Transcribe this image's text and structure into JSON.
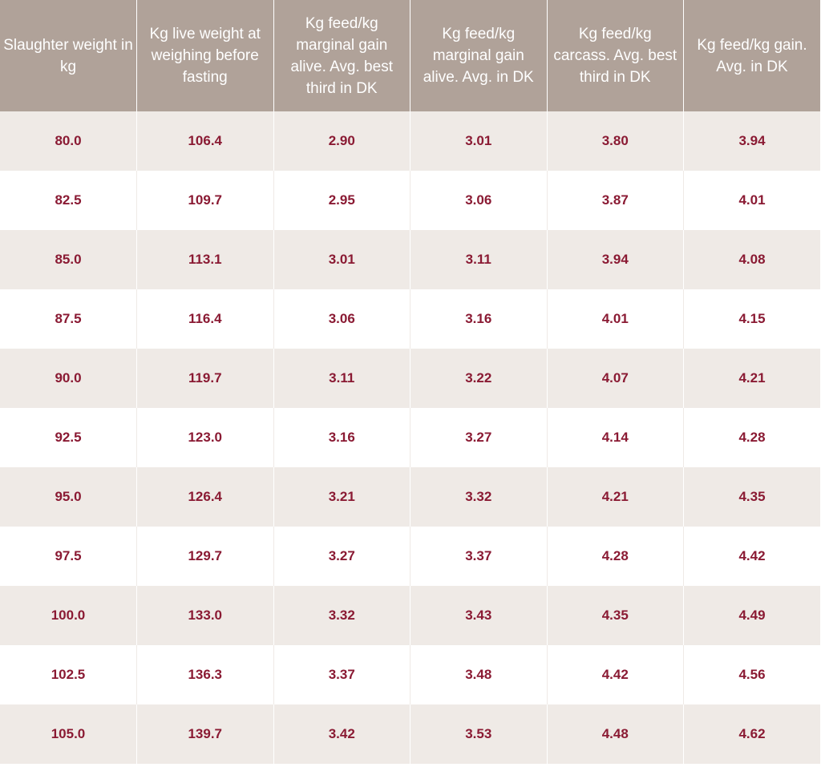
{
  "table": {
    "headers": [
      "Slaughter weight in kg",
      "Kg live weight at weighing before fasting",
      "Kg feed/kg marginal gain alive. Avg. best third in DK",
      "Kg feed/kg marginal gain alive. Avg. in DK",
      "Kg feed/kg carcass. Avg. best third in DK",
      "Kg feed/kg gain. Avg. in DK"
    ],
    "rows": [
      [
        "80.0",
        "106.4",
        "2.90",
        "3.01",
        "3.80",
        "3.94"
      ],
      [
        "82.5",
        "109.7",
        "2.95",
        "3.06",
        "3.87",
        "4.01"
      ],
      [
        "85.0",
        "113.1",
        "3.01",
        "3.11",
        "3.94",
        "4.08"
      ],
      [
        "87.5",
        "116.4",
        "3.06",
        "3.16",
        "4.01",
        "4.15"
      ],
      [
        "90.0",
        "119.7",
        "3.11",
        "3.22",
        "4.07",
        "4.21"
      ],
      [
        "92.5",
        "123.0",
        "3.16",
        "3.27",
        "4.14",
        "4.28"
      ],
      [
        "95.0",
        "126.4",
        "3.21",
        "3.32",
        "4.21",
        "4.35"
      ],
      [
        "97.5",
        "129.7",
        "3.27",
        "3.37",
        "4.28",
        "4.42"
      ],
      [
        "100.0",
        "133.0",
        "3.32",
        "3.43",
        "4.35",
        "4.49"
      ],
      [
        "102.5",
        "136.3",
        "3.37",
        "3.48",
        "4.42",
        "4.56"
      ],
      [
        "105.0",
        "139.7",
        "3.42",
        "3.53",
        "4.48",
        "4.62"
      ]
    ]
  },
  "colors": {
    "header_background": "#b0a299",
    "header_text": "#ffffff",
    "cell_text": "#8a1a33",
    "row_shaded": "#efeae6",
    "row_plain": "#ffffff"
  }
}
